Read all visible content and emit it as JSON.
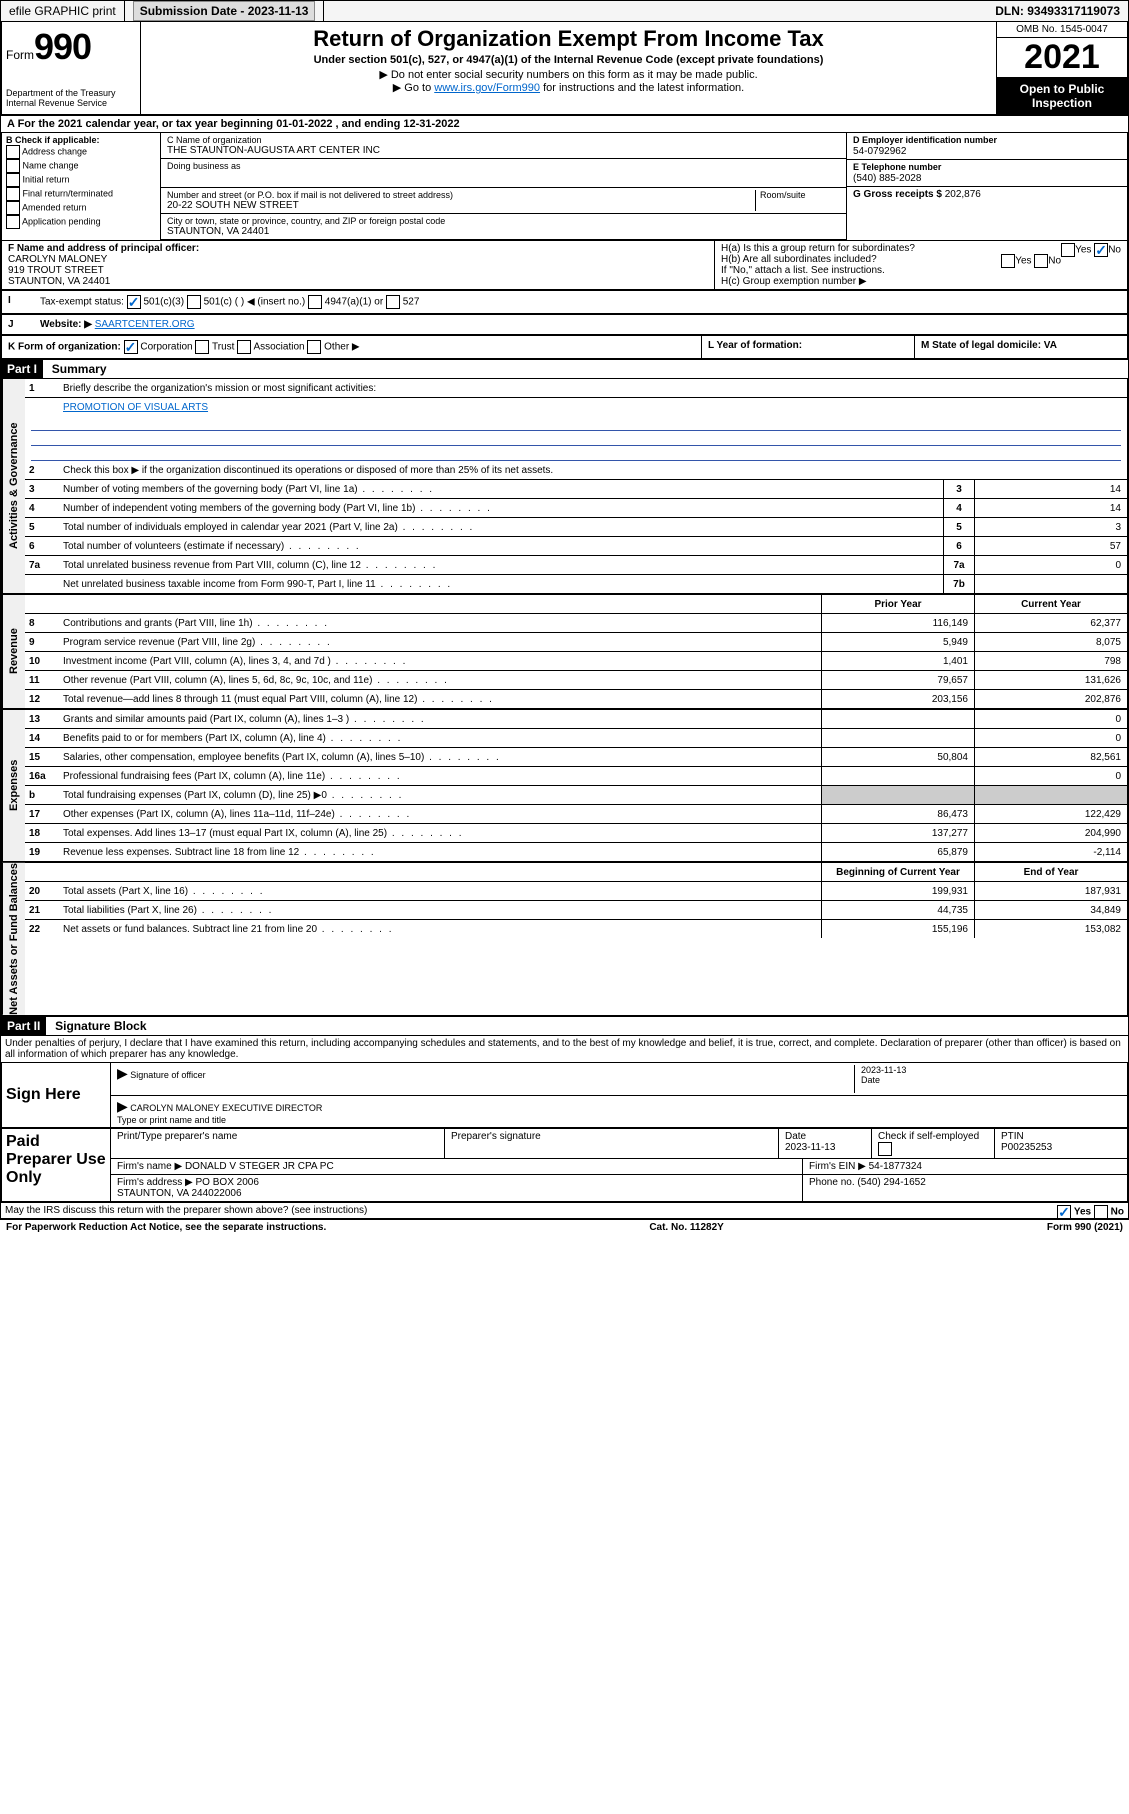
{
  "topbar": {
    "efile": "efile GRAPHIC print",
    "sub_label": "Submission Date - ",
    "sub_date": "2023-11-13",
    "dln": "DLN: 93493317119073"
  },
  "header": {
    "form_word": "Form",
    "form_num": "990",
    "dept": "Department of the Treasury Internal Revenue Service",
    "title": "Return of Organization Exempt From Income Tax",
    "sub1": "Under section 501(c), 527, or 4947(a)(1) of the Internal Revenue Code (except private foundations)",
    "sub2": "▶ Do not enter social security numbers on this form as it may be made public.",
    "sub3": "▶ Go to www.irs.gov/Form990 for instructions and the latest information.",
    "omb": "OMB No. 1545-0047",
    "year": "2021",
    "open": "Open to Public Inspection"
  },
  "lineA": "A For the 2021 calendar year, or tax year beginning 01-01-2022   , and ending 12-31-2022",
  "b": {
    "label": "B Check if applicable:",
    "opts": [
      "Address change",
      "Name change",
      "Initial return",
      "Final return/terminated",
      "Amended return",
      "Application pending"
    ]
  },
  "c": {
    "name_lbl": "C Name of organization",
    "name": "THE STAUNTON-AUGUSTA ART CENTER INC",
    "dba_lbl": "Doing business as",
    "addr_lbl": "Number and street (or P.O. box if mail is not delivered to street address)",
    "room_lbl": "Room/suite",
    "addr": "20-22 SOUTH NEW STREET",
    "city_lbl": "City or town, state or province, country, and ZIP or foreign postal code",
    "city": "STAUNTON, VA  24401"
  },
  "d": {
    "lbl": "D Employer identification number",
    "val": "54-0792962"
  },
  "e": {
    "lbl": "E Telephone number",
    "val": "(540) 885-2028"
  },
  "g": {
    "lbl": "G Gross receipts $",
    "val": "202,876"
  },
  "f": {
    "lbl": "F Name and address of principal officer:",
    "name": "CAROLYN MALONEY",
    "addr1": "919 TROUT STREET",
    "addr2": "STAUNTON, VA  24401"
  },
  "h": {
    "a": "H(a)  Is this a group return for subordinates?",
    "b": "H(b)  Are all subordinates included?",
    "b_note": "If \"No,\" attach a list. See instructions.",
    "c": "H(c)  Group exemption number ▶",
    "yes": "Yes",
    "no": "No"
  },
  "i": {
    "lbl": "Tax-exempt status:",
    "o1": "501(c)(3)",
    "o2": "501(c) (  ) ◀ (insert no.)",
    "o3": "4947(a)(1) or",
    "o4": "527"
  },
  "j": {
    "lbl": "Website: ▶",
    "val": "SAARTCENTER.ORG"
  },
  "k": {
    "lbl": "K Form of organization:",
    "o1": "Corporation",
    "o2": "Trust",
    "o3": "Association",
    "o4": "Other ▶"
  },
  "l": {
    "lbl": "L Year of formation:"
  },
  "m": {
    "lbl": "M State of legal domicile: VA"
  },
  "part1": {
    "hdr": "Part I",
    "title": "Summary",
    "q1": "Briefly describe the organization's mission or most significant activities:",
    "mission": "PROMOTION OF VISUAL ARTS",
    "q2": "Check this box ▶     if the organization discontinued its operations or disposed of more than 25% of its net assets."
  },
  "sections": {
    "gov": "Activities & Governance",
    "rev": "Revenue",
    "exp": "Expenses",
    "na": "Net Assets or Fund Balances"
  },
  "gov_rows": [
    {
      "n": "3",
      "d": "Number of voting members of the governing body (Part VI, line 1a)",
      "c": "3",
      "v": "14"
    },
    {
      "n": "4",
      "d": "Number of independent voting members of the governing body (Part VI, line 1b)",
      "c": "4",
      "v": "14"
    },
    {
      "n": "5",
      "d": "Total number of individuals employed in calendar year 2021 (Part V, line 2a)",
      "c": "5",
      "v": "3"
    },
    {
      "n": "6",
      "d": "Total number of volunteers (estimate if necessary)",
      "c": "6",
      "v": "57"
    },
    {
      "n": "7a",
      "d": "Total unrelated business revenue from Part VIII, column (C), line 12",
      "c": "7a",
      "v": "0"
    },
    {
      "n": "",
      "d": "Net unrelated business taxable income from Form 990-T, Part I, line 11",
      "c": "7b",
      "v": ""
    }
  ],
  "yr_hdr": {
    "prior": "Prior Year",
    "curr": "Current Year",
    "beg": "Beginning of Current Year",
    "end": "End of Year"
  },
  "rev_rows": [
    {
      "n": "8",
      "d": "Contributions and grants (Part VIII, line 1h)",
      "p": "116,149",
      "c": "62,377"
    },
    {
      "n": "9",
      "d": "Program service revenue (Part VIII, line 2g)",
      "p": "5,949",
      "c": "8,075"
    },
    {
      "n": "10",
      "d": "Investment income (Part VIII, column (A), lines 3, 4, and 7d )",
      "p": "1,401",
      "c": "798"
    },
    {
      "n": "11",
      "d": "Other revenue (Part VIII, column (A), lines 5, 6d, 8c, 9c, 10c, and 11e)",
      "p": "79,657",
      "c": "131,626"
    },
    {
      "n": "12",
      "d": "Total revenue—add lines 8 through 11 (must equal Part VIII, column (A), line 12)",
      "p": "203,156",
      "c": "202,876"
    }
  ],
  "exp_rows": [
    {
      "n": "13",
      "d": "Grants and similar amounts paid (Part IX, column (A), lines 1–3 )",
      "p": "",
      "c": "0"
    },
    {
      "n": "14",
      "d": "Benefits paid to or for members (Part IX, column (A), line 4)",
      "p": "",
      "c": "0"
    },
    {
      "n": "15",
      "d": "Salaries, other compensation, employee benefits (Part IX, column (A), lines 5–10)",
      "p": "50,804",
      "c": "82,561"
    },
    {
      "n": "16a",
      "d": "Professional fundraising fees (Part IX, column (A), line 11e)",
      "p": "",
      "c": "0"
    },
    {
      "n": "b",
      "d": "Total fundraising expenses (Part IX, column (D), line 25) ▶0",
      "p": "grey",
      "c": "grey"
    },
    {
      "n": "17",
      "d": "Other expenses (Part IX, column (A), lines 11a–11d, 11f–24e)",
      "p": "86,473",
      "c": "122,429"
    },
    {
      "n": "18",
      "d": "Total expenses. Add lines 13–17 (must equal Part IX, column (A), line 25)",
      "p": "137,277",
      "c": "204,990"
    },
    {
      "n": "19",
      "d": "Revenue less expenses. Subtract line 18 from line 12",
      "p": "65,879",
      "c": "-2,114"
    }
  ],
  "na_rows": [
    {
      "n": "20",
      "d": "Total assets (Part X, line 16)",
      "p": "199,931",
      "c": "187,931"
    },
    {
      "n": "21",
      "d": "Total liabilities (Part X, line 26)",
      "p": "44,735",
      "c": "34,849"
    },
    {
      "n": "22",
      "d": "Net assets or fund balances. Subtract line 21 from line 20",
      "p": "155,196",
      "c": "153,082"
    }
  ],
  "part2": {
    "hdr": "Part II",
    "title": "Signature Block",
    "decl": "Under penalties of perjury, I declare that I have examined this return, including accompanying schedules and statements, and to the best of my knowledge and belief, it is true, correct, and complete. Declaration of preparer (other than officer) is based on all information of which preparer has any knowledge."
  },
  "sign": {
    "here": "Sign Here",
    "sig_lbl": "Signature of officer",
    "date_lbl": "Date",
    "date_val": "2023-11-13",
    "name": "CAROLYN MALONEY  EXECUTIVE DIRECTOR",
    "name_lbl": "Type or print name and title"
  },
  "prep": {
    "hdr": "Paid Preparer Use Only",
    "pt_name_lbl": "Print/Type preparer's name",
    "sig_lbl": "Preparer's signature",
    "date_lbl": "Date",
    "date_val": "2023-11-13",
    "check_lbl": "Check      if self-employed",
    "ptin_lbl": "PTIN",
    "ptin": "P00235253",
    "firm_name_lbl": "Firm's name    ▶",
    "firm_name": "DONALD V STEGER JR CPA PC",
    "firm_ein_lbl": "Firm's EIN ▶",
    "firm_ein": "54-1877324",
    "firm_addr_lbl": "Firm's address ▶",
    "firm_addr1": "PO BOX 2006",
    "firm_addr2": "STAUNTON, VA  244022006",
    "phone_lbl": "Phone no.",
    "phone": "(540) 294-1652"
  },
  "discuss": "May the IRS discuss this return with the preparer shown above? (see instructions)",
  "footer": {
    "left": "For Paperwork Reduction Act Notice, see the separate instructions.",
    "mid": "Cat. No. 11282Y",
    "right": "Form 990 (2021)"
  }
}
